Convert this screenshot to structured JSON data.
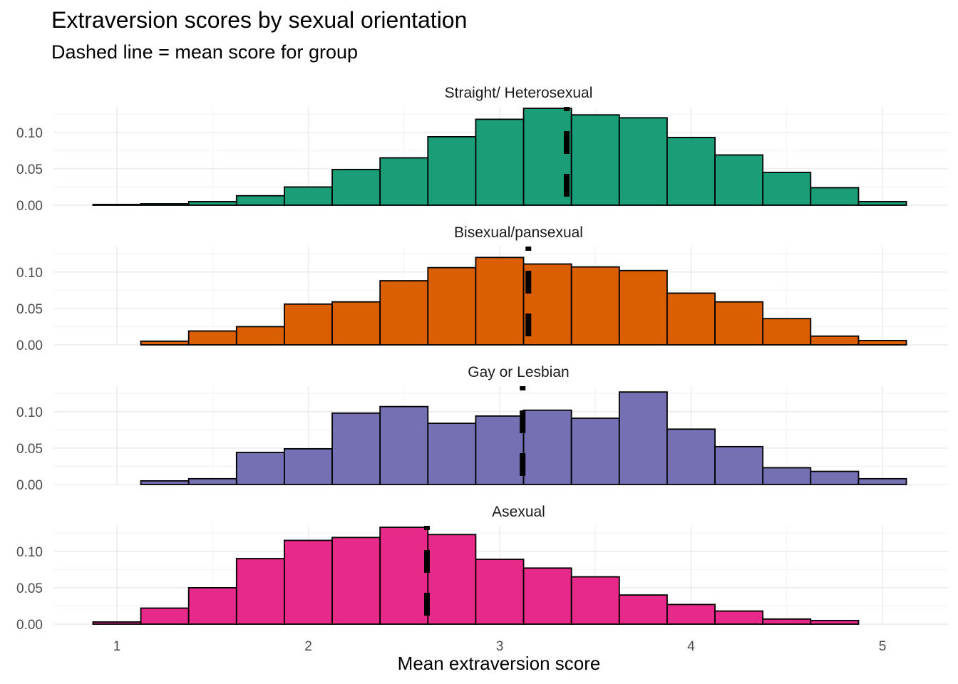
{
  "title": "Extraversion scores by sexual orientation",
  "subtitle": "Dashed line = mean score for group",
  "chart_data": {
    "type": "bar",
    "subtype": "faceted-histogram",
    "xlabel": "Mean extraversion score",
    "ylabel": "",
    "xlim": [
      0.875,
      5.125
    ],
    "ylim": [
      0,
      0.135
    ],
    "x_ticks": [
      1,
      2,
      3,
      4,
      5
    ],
    "y_ticks": [
      0.0,
      0.05,
      0.1
    ],
    "y_tick_labels": [
      "0.00",
      "0.05",
      "0.10"
    ],
    "bin_width": 0.25,
    "bin_centers": [
      1,
      1.25,
      1.5,
      1.75,
      2,
      2.25,
      2.5,
      2.75,
      3,
      3.25,
      3.5,
      3.75,
      4,
      4.25,
      4.5,
      4.75,
      5
    ],
    "grid": true,
    "legend": "none",
    "series": [
      {
        "name": "Straight/ Heterosexual",
        "color": "#1B9E77",
        "mean": 3.35,
        "values": [
          0.001,
          0.002,
          0.005,
          0.013,
          0.025,
          0.049,
          0.065,
          0.094,
          0.118,
          0.133,
          0.124,
          0.12,
          0.093,
          0.069,
          0.045,
          0.024,
          0.005
        ]
      },
      {
        "name": "Bisexual/pansexual",
        "color": "#D95F02",
        "mean": 3.15,
        "values": [
          0.0,
          0.005,
          0.019,
          0.025,
          0.056,
          0.059,
          0.088,
          0.106,
          0.12,
          0.111,
          0.107,
          0.102,
          0.071,
          0.059,
          0.036,
          0.012,
          0.006
        ]
      },
      {
        "name": "Gay or Lesbian",
        "color": "#7570B3",
        "mean": 3.12,
        "values": [
          0.0,
          0.005,
          0.008,
          0.044,
          0.049,
          0.098,
          0.107,
          0.084,
          0.094,
          0.102,
          0.091,
          0.127,
          0.076,
          0.052,
          0.023,
          0.018,
          0.008
        ]
      },
      {
        "name": "Asexual",
        "color": "#E7298A",
        "mean": 2.62,
        "values": [
          0.003,
          0.022,
          0.05,
          0.09,
          0.115,
          0.119,
          0.133,
          0.123,
          0.089,
          0.077,
          0.065,
          0.04,
          0.027,
          0.018,
          0.007,
          0.005,
          0.0
        ]
      }
    ]
  }
}
